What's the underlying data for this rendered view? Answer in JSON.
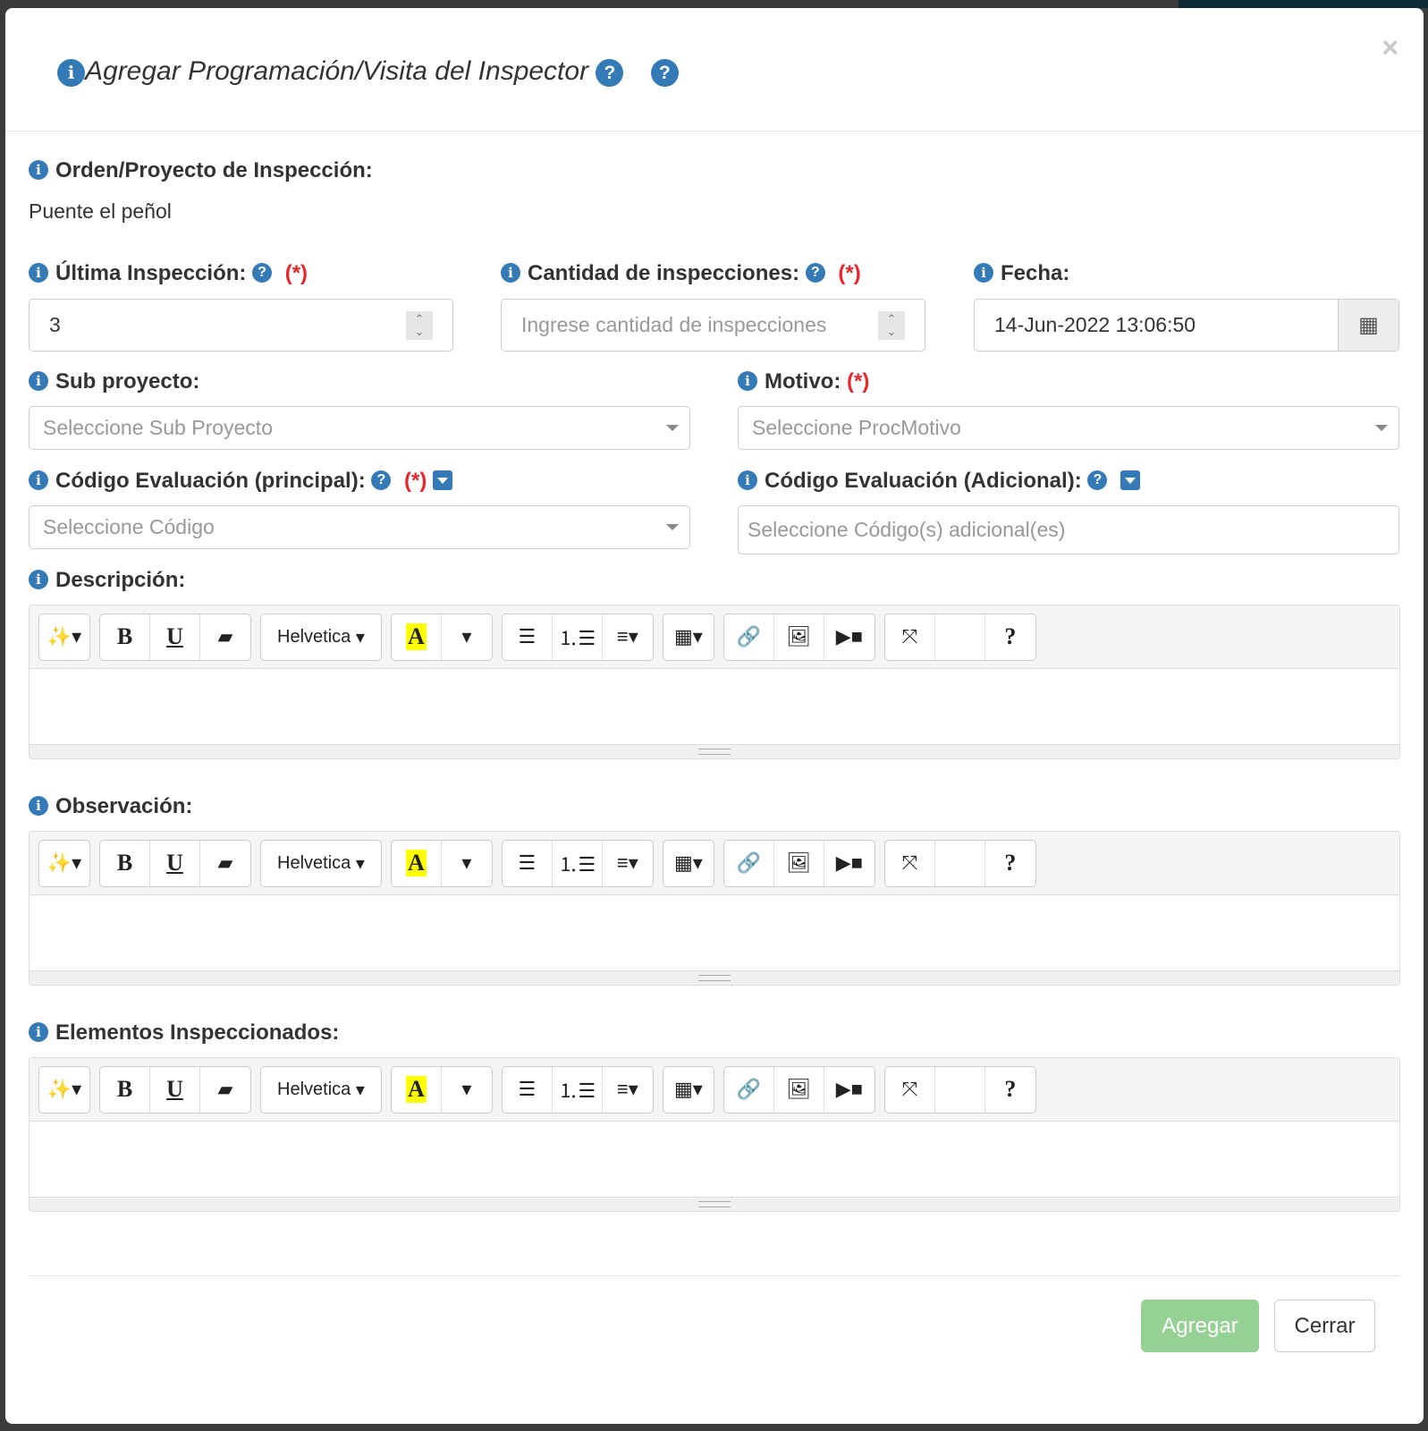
{
  "modal": {
    "title": "Agregar Programación/Visita del Inspector",
    "close": "×"
  },
  "orden": {
    "label": "Orden/Proyecto de Inspección:",
    "value": "Puente el peñol"
  },
  "ultima": {
    "label": "Última Inspección:",
    "required": "(*)",
    "value": "3"
  },
  "cantidad": {
    "label": "Cantidad de inspecciones:",
    "required": "(*)",
    "placeholder": "Ingrese cantidad de inspecciones"
  },
  "fecha": {
    "label": "Fecha:",
    "value": "14-Jun-2022 13:06:50"
  },
  "subproyecto": {
    "label": "Sub proyecto:",
    "placeholder": "Seleccione Sub Proyecto"
  },
  "motivo": {
    "label": "Motivo:",
    "required": "(*)",
    "placeholder": "Seleccione ProcMotivo"
  },
  "codigo_principal": {
    "label": "Código Evaluación (principal):",
    "required": "(*)",
    "placeholder": "Seleccione Código"
  },
  "codigo_adicional": {
    "label": "Código Evaluación (Adicional):",
    "placeholder": "Seleccione Código(s) adicional(es)"
  },
  "editors": [
    {
      "label": "Descripción:"
    },
    {
      "label": "Observación:"
    },
    {
      "label": "Elementos Inspeccionados:"
    }
  ],
  "toolbar": {
    "font": "Helvetica"
  },
  "footer": {
    "agregar": "Agregar",
    "cerrar": "Cerrar"
  },
  "colors": {
    "accent": "#337ab7",
    "required": "#e8262b",
    "success_disabled": "#95d095"
  }
}
